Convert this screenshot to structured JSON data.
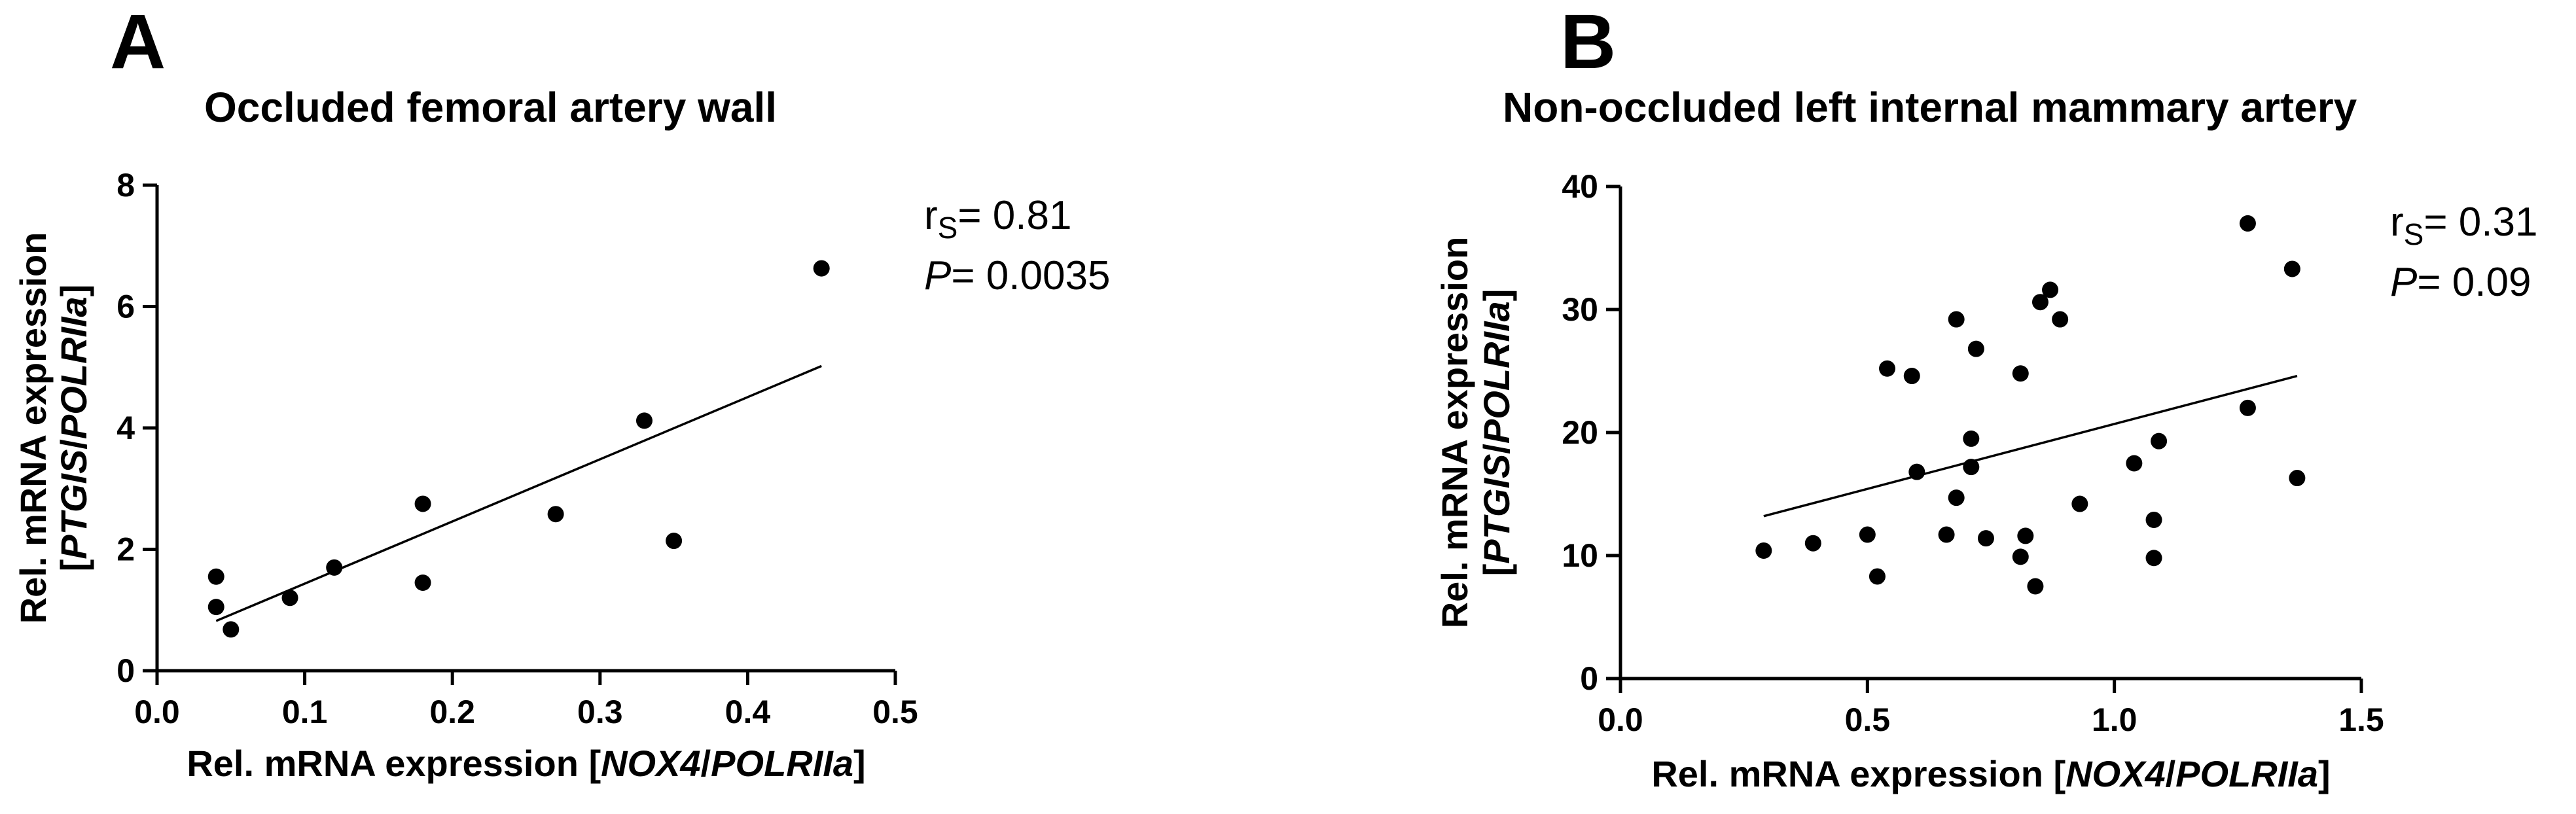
{
  "chart_data": [
    {
      "type": "scatter",
      "panel_label": "A",
      "title": "Occluded femoral artery wall",
      "xlabel_parts": [
        {
          "text": "Rel. mRNA expression [",
          "italic": false
        },
        {
          "text": "NOX4",
          "italic": true
        },
        {
          "text": "/",
          "italic": false
        },
        {
          "text": "POLRIIa",
          "italic": true
        },
        {
          "text": "]",
          "italic": false
        }
      ],
      "ylabel_line1": "Rel. mRNA expression",
      "ylabel_line2_parts": [
        {
          "text": "[",
          "italic": false
        },
        {
          "text": "PTGIS",
          "italic": true
        },
        {
          "text": "/",
          "italic": false
        },
        {
          "text": "POLRIIa",
          "italic": true
        },
        {
          "text": "]",
          "italic": false
        }
      ],
      "xlim": [
        0.0,
        0.5
      ],
      "ylim": [
        0,
        8
      ],
      "xticks": [
        0.0,
        0.1,
        0.2,
        0.3,
        0.4,
        0.5
      ],
      "xtick_labels": [
        "0.0",
        "0.1",
        "0.2",
        "0.3",
        "0.4",
        "0.5"
      ],
      "yticks": [
        0,
        2,
        4,
        6,
        8
      ],
      "ytick_labels": [
        "0",
        "2",
        "4",
        "6",
        "8"
      ],
      "points": [
        [
          0.04,
          1.55
        ],
        [
          0.04,
          1.05
        ],
        [
          0.05,
          0.68
        ],
        [
          0.09,
          1.2
        ],
        [
          0.12,
          1.7
        ],
        [
          0.18,
          2.75
        ],
        [
          0.18,
          1.45
        ],
        [
          0.27,
          2.58
        ],
        [
          0.33,
          4.12
        ],
        [
          0.35,
          2.14
        ],
        [
          0.45,
          6.63
        ]
      ],
      "fit_line": [
        [
          0.04,
          0.82
        ],
        [
          0.45,
          5.02
        ]
      ],
      "stats": {
        "r_symbol": "r",
        "r_subscript": "S",
        "r_value": "= 0.81",
        "p_symbol": "P",
        "p_value": "= 0.0035"
      },
      "grid": false
    },
    {
      "type": "scatter",
      "panel_label": "B",
      "title": "Non-occluded left internal mammary artery",
      "xlabel_parts": [
        {
          "text": "Rel. mRNA expression [",
          "italic": false
        },
        {
          "text": "NOX4",
          "italic": true
        },
        {
          "text": "/",
          "italic": false
        },
        {
          "text": "POLRIIa",
          "italic": true
        },
        {
          "text": "]",
          "italic": false
        }
      ],
      "ylabel_line1": "Rel. mRNA expression",
      "ylabel_line2_parts": [
        {
          "text": "[",
          "italic": false
        },
        {
          "text": "PTGIS",
          "italic": true
        },
        {
          "text": "/",
          "italic": false
        },
        {
          "text": "POLRIIa",
          "italic": true
        },
        {
          "text": "]",
          "italic": false
        }
      ],
      "xlim": [
        0.0,
        1.5
      ],
      "ylim": [
        0,
        40
      ],
      "xticks": [
        0.0,
        0.5,
        1.0,
        1.5
      ],
      "xtick_labels": [
        "0.0",
        "0.5",
        "1.0",
        "1.5"
      ],
      "yticks": [
        0,
        10,
        20,
        30,
        40
      ],
      "ytick_labels": [
        "0",
        "10",
        "20",
        "30",
        "40"
      ],
      "points": [
        [
          0.29,
          10.4
        ],
        [
          0.39,
          11.0
        ],
        [
          0.5,
          11.7
        ],
        [
          0.52,
          8.3
        ],
        [
          0.54,
          25.2
        ],
        [
          0.59,
          24.6
        ],
        [
          0.6,
          16.8
        ],
        [
          0.66,
          11.7
        ],
        [
          0.68,
          29.2
        ],
        [
          0.68,
          14.7
        ],
        [
          0.71,
          17.2
        ],
        [
          0.71,
          19.5
        ],
        [
          0.72,
          26.8
        ],
        [
          0.74,
          11.4
        ],
        [
          0.81,
          24.8
        ],
        [
          0.81,
          9.9
        ],
        [
          0.82,
          11.6
        ],
        [
          0.84,
          7.5
        ],
        [
          0.85,
          30.6
        ],
        [
          0.87,
          31.6
        ],
        [
          0.89,
          29.2
        ],
        [
          0.93,
          14.2
        ],
        [
          1.04,
          17.5
        ],
        [
          1.08,
          12.9
        ],
        [
          1.08,
          9.8
        ],
        [
          1.09,
          19.3
        ],
        [
          1.27,
          37.0
        ],
        [
          1.27,
          22.0
        ],
        [
          1.36,
          33.3
        ],
        [
          1.37,
          16.3
        ]
      ],
      "fit_line": [
        [
          0.29,
          13.2
        ],
        [
          1.37,
          24.6
        ]
      ],
      "stats": {
        "r_symbol": "r",
        "r_subscript": "S",
        "r_value": "= 0.31",
        "p_symbol": "P",
        "p_value": "= 0.09"
      },
      "grid": false
    }
  ]
}
